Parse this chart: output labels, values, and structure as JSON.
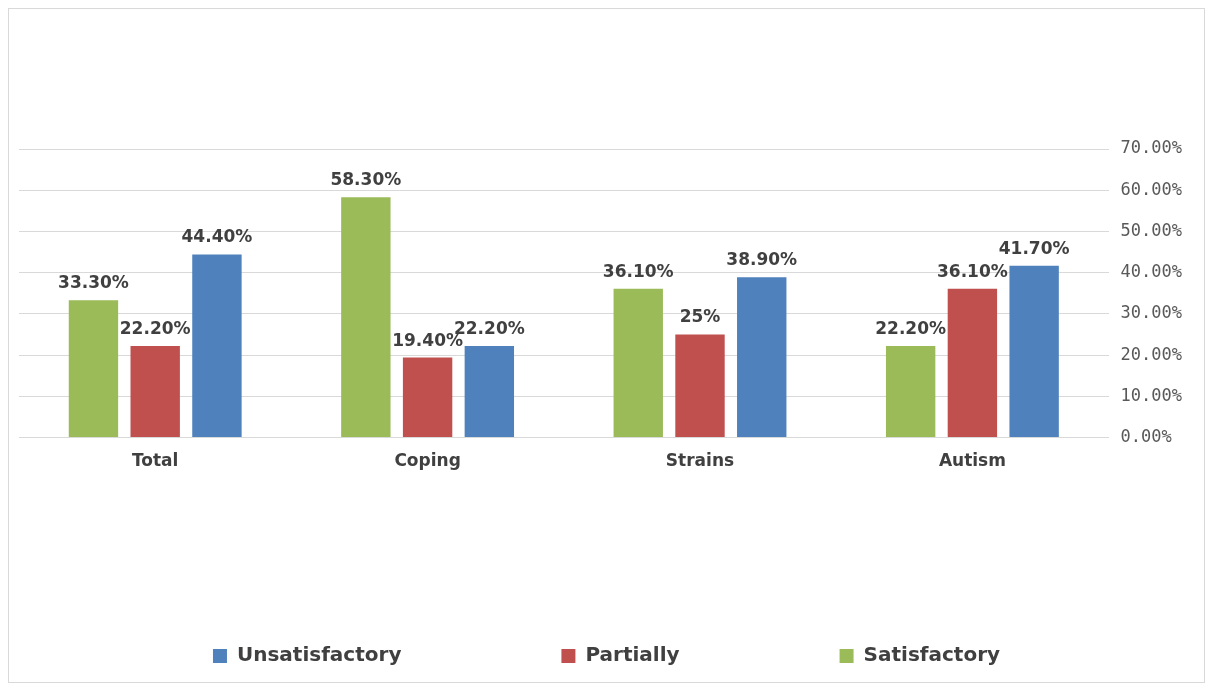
{
  "chart_data": {
    "type": "bar",
    "categories": [
      "Total",
      "Coping",
      "Strains",
      "Autism"
    ],
    "series": [
      {
        "name": "Satisfactory",
        "color": "#9bbb59",
        "values": [
          33.3,
          58.3,
          36.1,
          22.2
        ],
        "value_labels": [
          "33.30%",
          "58.30%",
          "36.10%",
          "22.20%"
        ]
      },
      {
        "name": "Partially",
        "color": "#c0504d",
        "values": [
          22.2,
          19.4,
          25,
          36.1
        ],
        "value_labels": [
          "22.20%",
          "19.40%",
          "25%",
          "36.10%"
        ]
      },
      {
        "name": "Unsatisfactory",
        "color": "#4f81bd",
        "values": [
          44.4,
          22.2,
          38.9,
          41.7
        ],
        "value_labels": [
          "44.40%",
          "22.20%",
          "38.90%",
          "41.70%"
        ]
      }
    ],
    "ylim": [
      0,
      70
    ],
    "yticks": [
      {
        "value": 0,
        "label": "0.00%"
      },
      {
        "value": 10,
        "label": "10.00%"
      },
      {
        "value": 20,
        "label": "20.00%"
      },
      {
        "value": 30,
        "label": "30.00%"
      },
      {
        "value": 40,
        "label": "40.00%"
      },
      {
        "value": 50,
        "label": "50.00%"
      },
      {
        "value": 60,
        "label": "60.00%"
      },
      {
        "value": 70,
        "label": "70.00%"
      }
    ],
    "grid": "y",
    "legend": "bottom"
  }
}
